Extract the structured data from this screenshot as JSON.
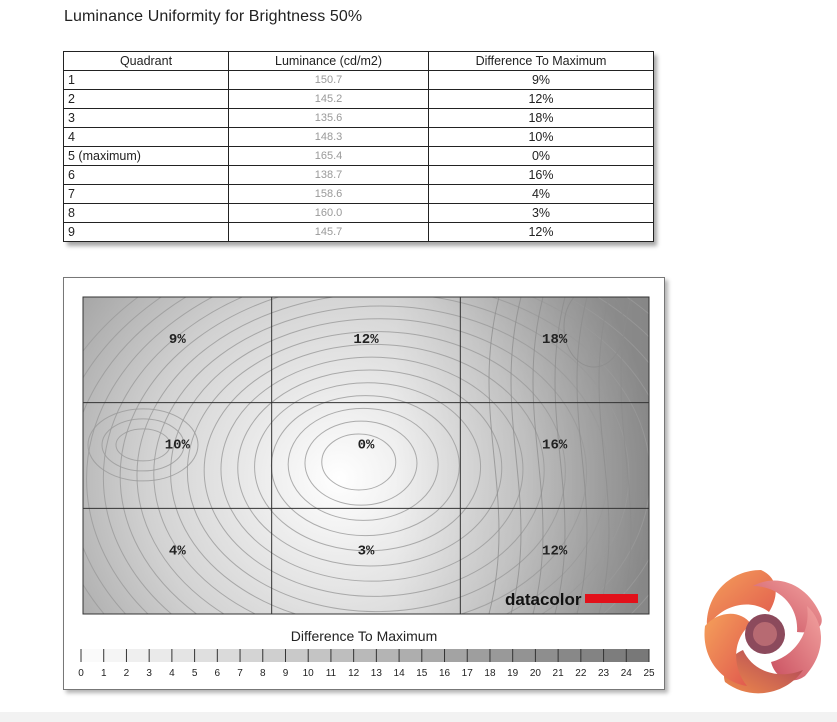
{
  "page_title": "Luminance Uniformity for Brightness 50%",
  "table": {
    "headers": [
      "Quadrant",
      "Luminance (cd/m2)",
      "Difference To Maximum"
    ],
    "rows": [
      {
        "quadrant": "1",
        "luminance": "150.7",
        "difference": "9%"
      },
      {
        "quadrant": "2",
        "luminance": "145.2",
        "difference": "12%"
      },
      {
        "quadrant": "3",
        "luminance": "135.6",
        "difference": "18%"
      },
      {
        "quadrant": "4",
        "luminance": "148.3",
        "difference": "10%"
      },
      {
        "quadrant": "5 (maximum)",
        "luminance": "165.4",
        "difference": "0%"
      },
      {
        "quadrant": "6",
        "luminance": "138.7",
        "difference": "16%"
      },
      {
        "quadrant": "7",
        "luminance": "158.6",
        "difference": "4%"
      },
      {
        "quadrant": "8",
        "luminance": "160.0",
        "difference": "3%"
      },
      {
        "quadrant": "9",
        "luminance": "145.7",
        "difference": "12%"
      }
    ]
  },
  "chart_data": {
    "type": "heatmap",
    "grid": {
      "rows": 3,
      "cols": 3
    },
    "cells": [
      [
        "9%",
        "12%",
        "18%"
      ],
      [
        "10%",
        "0%",
        "16%"
      ],
      [
        "4%",
        "3%",
        "12%"
      ]
    ],
    "values": [
      [
        9,
        12,
        18
      ],
      [
        10,
        0,
        16
      ],
      [
        4,
        3,
        12
      ]
    ],
    "brand_label": "datacolor",
    "brand_color": "#e2101a",
    "scale": {
      "title": "Difference To Maximum",
      "min": 0,
      "max": 25,
      "ticks": [
        "0",
        "1",
        "2",
        "3",
        "4",
        "5",
        "6",
        "7",
        "8",
        "9",
        "10",
        "11",
        "12",
        "13",
        "14",
        "15",
        "16",
        "17",
        "18",
        "19",
        "20",
        "21",
        "22",
        "23",
        "24",
        "25"
      ]
    }
  },
  "colors": {
    "logo_orange": "#f07a3a",
    "logo_pink": "#e06a7e",
    "logo_purple": "#8a4a5e"
  }
}
